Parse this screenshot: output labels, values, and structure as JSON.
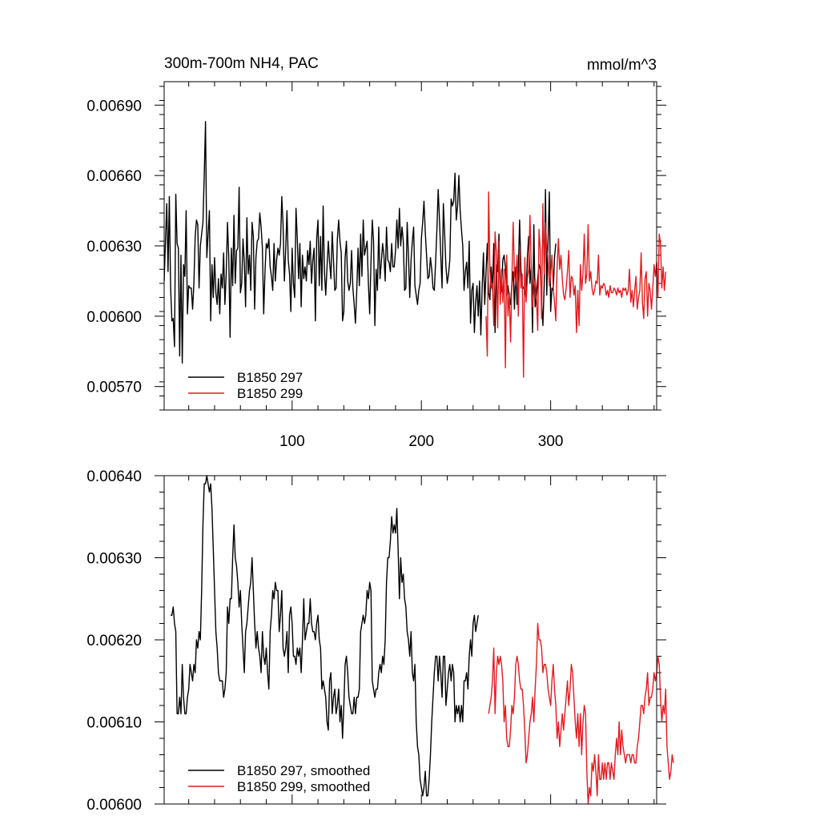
{
  "colors": {
    "series_a": "#000000",
    "series_b": "#e41a1c",
    "axis": "#000000",
    "background": "#ffffff"
  },
  "chart_data": [
    {
      "type": "line",
      "title": "300m-700m NH4, PAC",
      "units": "mmol/m^3",
      "xlim": [
        1,
        382
      ],
      "ylim": [
        0.0056,
        0.007
      ],
      "xticks": [
        100,
        200,
        300
      ],
      "xtick_labels": [
        "100",
        "200",
        "300"
      ],
      "yticks": [
        0.0057,
        0.006,
        0.0063,
        0.0066,
        0.0069
      ],
      "ytick_labels": [
        "0.00570",
        "0.00600",
        "0.00630",
        "0.00660",
        "0.00690"
      ],
      "legend_position": "bottom-left",
      "series": [
        {
          "name": "B1850 297",
          "color": "#000000",
          "x_start": 1,
          "values": [
            0.00615,
            0.00632,
            0.00648,
            0.00619,
            0.00651,
            0.00612,
            0.00598,
            0.00599,
            0.00587,
            0.00652,
            0.00631,
            0.00629,
            0.00583,
            0.00626,
            0.0058,
            0.00622,
            0.00617,
            0.00645,
            0.00601,
            0.00613,
            0.00612,
            0.00612,
            0.00603,
            0.00614,
            0.00634,
            0.00641,
            0.00639,
            0.00612,
            0.0063,
            0.00635,
            0.0064,
            0.0066,
            0.00683,
            0.00625,
            0.00635,
            0.00645,
            0.00598,
            0.00622,
            0.00608,
            0.00625,
            0.0061,
            0.00605,
            0.00616,
            0.00601,
            0.00618,
            0.00612,
            0.00627,
            0.00605,
            0.00618,
            0.0064,
            0.00625,
            0.00591,
            0.00629,
            0.00613,
            0.00643,
            0.00614,
            0.00628,
            0.00629,
            0.00655,
            0.0061,
            0.00614,
            0.00633,
            0.00623,
            0.00604,
            0.00642,
            0.00618,
            0.00626,
            0.00611,
            0.0064,
            0.00634,
            0.00603,
            0.00625,
            0.00632,
            0.00633,
            0.00644,
            0.00638,
            0.00629,
            0.00601,
            0.00619,
            0.00631,
            0.00629,
            0.00633,
            0.00621,
            0.00617,
            0.00611,
            0.00631,
            0.00615,
            0.00624,
            0.00629,
            0.00626,
            0.00631,
            0.00651,
            0.00639,
            0.00615,
            0.00628,
            0.00645,
            0.00624,
            0.00618,
            0.00602,
            0.00629,
            0.00614,
            0.00608,
            0.00646,
            0.00633,
            0.00616,
            0.00631,
            0.00604,
            0.00626,
            0.00616,
            0.00621,
            0.00615,
            0.00628,
            0.00622,
            0.00632,
            0.00614,
            0.00624,
            0.00629,
            0.00598,
            0.00633,
            0.00641,
            0.00613,
            0.00634,
            0.00611,
            0.00647,
            0.00619,
            0.00609,
            0.00621,
            0.00632,
            0.00623,
            0.00616,
            0.00636,
            0.00624,
            0.00611,
            0.00612,
            0.00633,
            0.00641,
            0.00632,
            0.00627,
            0.00598,
            0.00602,
            0.00625,
            0.00632,
            0.00615,
            0.00611,
            0.00614,
            0.00628,
            0.00612,
            0.00605,
            0.00597,
            0.00611,
            0.00629,
            0.00613,
            0.00635,
            0.00617,
            0.00641,
            0.00626,
            0.00629,
            0.00632,
            0.00614,
            0.00601,
            0.00623,
            0.00641,
            0.00632,
            0.00596,
            0.0062,
            0.00611,
            0.00638,
            0.00616,
            0.00623,
            0.00631,
            0.00626,
            0.00615,
            0.00638,
            0.00624,
            0.00623,
            0.00619,
            0.00631,
            0.00621,
            0.00621,
            0.00628,
            0.00641,
            0.00629,
            0.00646,
            0.0063,
            0.00638,
            0.00632,
            0.00611,
            0.00612,
            0.0064,
            0.00626,
            0.00608,
            0.00624,
            0.00632,
            0.00638,
            0.00613,
            0.00609,
            0.00605,
            0.00611,
            0.00614,
            0.00633,
            0.0064,
            0.00649,
            0.00636,
            0.00626,
            0.00616,
            0.00617,
            0.00625,
            0.0062,
            0.00612,
            0.00611,
            0.00623,
            0.00637,
            0.00654,
            0.00641,
            0.00626,
            0.00612,
            0.00648,
            0.00635,
            0.00621,
            0.00614,
            0.00618,
            0.00624,
            0.0065,
            0.00647,
            0.00649,
            0.00661,
            0.00641,
            0.00647,
            0.0066,
            0.00645,
            0.00637,
            0.0063,
            0.00611,
            0.00619,
            0.00623,
            0.00612,
            0.00632,
            0.00597,
            0.00611,
            0.00614,
            0.00593,
            0.00606,
            0.00613,
            0.006,
            0.00615,
            0.00592,
            0.00612,
            0.00627,
            0.00605,
            0.00619,
            0.00631,
            0.0061,
            0.00607,
            0.00621,
            0.00611,
            0.00631,
            0.00593,
            0.00622,
            0.00619,
            0.00635,
            0.00609,
            0.00611,
            0.00624,
            0.00626,
            0.00621,
            0.00609,
            0.00613,
            0.00608,
            0.00605,
            0.00614,
            0.00619,
            0.00603,
            0.00621,
            0.00605,
            0.0062,
            0.00641,
            0.0062,
            0.00613,
            0.00612,
            0.00611,
            0.00608,
            0.00625,
            0.00634,
            0.00614,
            0.00621,
            0.00593,
            0.00639,
            0.00604,
            0.00608,
            0.00616,
            0.00622,
            0.0062,
            0.00606,
            0.00596,
            0.00613,
            0.00654,
            0.00609,
            0.00632,
            0.00653,
            0.00602,
            0.00612,
            0.00611,
            0.00625,
            0.00631
          ]
        },
        {
          "name": "B1850 299",
          "color": "#e41a1c",
          "x_start": 250,
          "values": [
            0.006,
            0.00583,
            0.00653,
            0.0062,
            0.00612,
            0.00614,
            0.00596,
            0.00636,
            0.00627,
            0.00595,
            0.00632,
            0.00605,
            0.0062,
            0.00606,
            0.0062,
            0.00578,
            0.00626,
            0.006,
            0.0061,
            0.00589,
            0.00615,
            0.0064,
            0.00618,
            0.00613,
            0.00626,
            0.006,
            0.00629,
            0.00612,
            0.00618,
            0.00574,
            0.00625,
            0.00606,
            0.00616,
            0.0062,
            0.00643,
            0.00621,
            0.00604,
            0.00611,
            0.00616,
            0.00608,
            0.00594,
            0.00637,
            0.00628,
            0.00599,
            0.00648,
            0.00618,
            0.0064,
            0.00629,
            0.00626,
            0.00613,
            0.00618,
            0.00626,
            0.00612,
            0.00606,
            0.00598,
            0.00621,
            0.00633,
            0.0062,
            0.00626,
            0.00616,
            0.00609,
            0.00607,
            0.00612,
            0.00619,
            0.00628,
            0.00608,
            0.00617,
            0.00616,
            0.00609,
            0.00613,
            0.00593,
            0.00611,
            0.00596,
            0.00622,
            0.00611,
            0.00618,
            0.00635,
            0.00614,
            0.00618,
            0.00639,
            0.00615,
            0.00619,
            0.00612,
            0.00609,
            0.00611,
            0.00615,
            0.00614,
            0.00626,
            0.00609,
            0.00613,
            0.00612,
            0.00614,
            0.00613,
            0.00609,
            0.00611,
            0.00608,
            0.00613,
            0.0061,
            0.0061,
            0.00612,
            0.00611,
            0.00609,
            0.00612,
            0.0061,
            0.00611,
            0.00608,
            0.00612,
            0.00611,
            0.00612,
            0.00609,
            0.00611,
            0.0062,
            0.00606,
            0.00611,
            0.00604,
            0.00611,
            0.00617,
            0.00603,
            0.00608,
            0.00611,
            0.00627,
            0.00606,
            0.00599,
            0.00616,
            0.00619,
            0.006,
            0.00614,
            0.00611,
            0.00603,
            0.00612,
            0.00622,
            0.00617,
            0.00623,
            0.00608,
            0.00635,
            0.00631,
            0.00612,
            0.00621,
            0.00611,
            0.00619
          ]
        }
      ]
    },
    {
      "type": "line",
      "title": "",
      "xlim": [
        1,
        382
      ],
      "ylim": [
        0.006,
        0.0064
      ],
      "yticks": [
        0.006,
        0.0061,
        0.0062,
        0.0063,
        0.0064
      ],
      "ytick_labels": [
        "0.00600",
        "0.00610",
        "0.00620",
        "0.00630",
        "0.00640"
      ],
      "xticks": [
        100,
        200,
        300
      ],
      "legend_position": "bottom-left",
      "series": [
        {
          "name": "B1850 297, smoothed",
          "color": "#000000",
          "x_start": 6,
          "values": [
            0.00623,
            0.00623,
            0.00624,
            0.00622,
            0.00621,
            0.00611,
            0.00611,
            0.00613,
            0.00611,
            0.00617,
            0.00613,
            0.00611,
            0.00611,
            0.00613,
            0.00614,
            0.00617,
            0.00616,
            0.00615,
            0.00617,
            0.00616,
            0.0062,
            0.00619,
            0.00621,
            0.0062,
            0.00626,
            0.00634,
            0.00639,
            0.00639,
            0.0064,
            0.00639,
            0.00638,
            0.00639,
            0.00636,
            0.00631,
            0.00626,
            0.00621,
            0.00619,
            0.00616,
            0.00615,
            0.00615,
            0.00615,
            0.00613,
            0.00614,
            0.00616,
            0.00624,
            0.00622,
            0.00625,
            0.00625,
            0.0063,
            0.00634,
            0.0063,
            0.00629,
            0.00627,
            0.00624,
            0.00626,
            0.00622,
            0.00619,
            0.00616,
            0.00621,
            0.00622,
            0.00624,
            0.00626,
            0.00627,
            0.0063,
            0.00626,
            0.00622,
            0.00619,
            0.00621,
            0.00619,
            0.00618,
            0.00616,
            0.00621,
            0.00618,
            0.00617,
            0.00619,
            0.00616,
            0.00614,
            0.00621,
            0.00623,
            0.00626,
            0.00625,
            0.00627,
            0.00626,
            0.00626,
            0.00621,
            0.00623,
            0.00626,
            0.00619,
            0.00618,
            0.00619,
            0.00621,
            0.00616,
            0.00623,
            0.00624,
            0.00622,
            0.00618,
            0.00618,
            0.00617,
            0.00619,
            0.00618,
            0.00619,
            0.00616,
            0.0062,
            0.00625,
            0.0062,
            0.00621,
            0.00622,
            0.00622,
            0.00625,
            0.00622,
            0.00621,
            0.00621,
            0.0062,
            0.00622,
            0.00623,
            0.0062,
            0.00619,
            0.00614,
            0.00615,
            0.00614,
            0.00613,
            0.0061,
            0.00609,
            0.00615,
            0.00616,
            0.00611,
            0.00613,
            0.00614,
            0.00611,
            0.00612,
            0.00614,
            0.0061,
            0.00612,
            0.00608,
            0.00612,
            0.00617,
            0.00618,
            0.00616,
            0.00613,
            0.00612,
            0.00611,
            0.00611,
            0.00613,
            0.00611,
            0.00613,
            0.00613,
            0.00614,
            0.00621,
            0.00622,
            0.00623,
            0.00622,
            0.00623,
            0.00626,
            0.00625,
            0.00627,
            0.00626,
            0.00615,
            0.00614,
            0.00613,
            0.00614,
            0.00614,
            0.00616,
            0.00617,
            0.00616,
            0.00618,
            0.00617,
            0.0062,
            0.00627,
            0.0063,
            0.0063,
            0.00632,
            0.00635,
            0.00633,
            0.00634,
            0.00633,
            0.00636,
            0.00631,
            0.00625,
            0.0063,
            0.00627,
            0.00628,
            0.00625,
            0.00624,
            0.00621,
            0.0062,
            0.00618,
            0.00621,
            0.00616,
            0.00615,
            0.00617,
            0.0061,
            0.00607,
            0.00606,
            0.00603,
            0.00602,
            0.00601,
            0.00602,
            0.00604,
            0.00601,
            0.00601,
            0.00603,
            0.00606,
            0.0061,
            0.00613,
            0.00616,
            0.00618,
            0.00618,
            0.00615,
            0.00618,
            0.00616,
            0.00613,
            0.00618,
            0.00618,
            0.00612,
            0.00614,
            0.00616,
            0.00617,
            0.00615,
            0.00617,
            0.00616,
            0.0061,
            0.00612,
            0.00611,
            0.00612,
            0.0061,
            0.00612,
            0.0061,
            0.00615,
            0.00615,
            0.00616,
            0.00614,
            0.00618,
            0.0062,
            0.00618,
            0.00622,
            0.00623,
            0.00621,
            0.00622,
            0.00623
          ]
        },
        {
          "name": "B1850 299, smoothed",
          "color": "#e41a1c",
          "x_start": 252,
          "values": [
            0.00611,
            0.00612,
            0.00613,
            0.00615,
            0.00619,
            0.00611,
            0.00616,
            0.00618,
            0.00617,
            0.00618,
            0.00617,
            0.00615,
            0.0061,
            0.00612,
            0.00608,
            0.00607,
            0.00607,
            0.00609,
            0.00612,
            0.00611,
            0.00613,
            0.00617,
            0.00618,
            0.00617,
            0.00615,
            0.00614,
            0.00614,
            0.00612,
            0.00609,
            0.00605,
            0.00606,
            0.00608,
            0.0061,
            0.00611,
            0.00613,
            0.0061,
            0.00614,
            0.00617,
            0.00622,
            0.0062,
            0.0062,
            0.00619,
            0.00616,
            0.00617,
            0.00617,
            0.00616,
            0.00614,
            0.00613,
            0.00612,
            0.00615,
            0.00617,
            0.00614,
            0.00612,
            0.00608,
            0.0061,
            0.00607,
            0.00609,
            0.00611,
            0.00609,
            0.00611,
            0.00613,
            0.00615,
            0.00612,
            0.00614,
            0.00617,
            0.00616,
            0.00613,
            0.0061,
            0.00608,
            0.00611,
            0.00607,
            0.00611,
            0.00606,
            0.0061,
            0.00612,
            0.00611,
            0.00604,
            0.006,
            0.00602,
            0.00601,
            0.00605,
            0.00604,
            0.00606,
            0.00604,
            0.00601,
            0.00606,
            0.00603,
            0.00603,
            0.00605,
            0.00603,
            0.00605,
            0.00603,
            0.00605,
            0.00605,
            0.00603,
            0.00605,
            0.00604,
            0.00603,
            0.00606,
            0.00608,
            0.00606,
            0.0061,
            0.00606,
            0.00609,
            0.00607,
            0.00606,
            0.00605,
            0.00606,
            0.00606,
            0.00606,
            0.00605,
            0.00606,
            0.00606,
            0.00605,
            0.00605,
            0.00607,
            0.00608,
            0.0061,
            0.00612,
            0.00612,
            0.00611,
            0.00613,
            0.00614,
            0.00616,
            0.00612,
            0.00613,
            0.00613,
            0.00614,
            0.00616,
            0.00615,
            0.00616,
            0.00618,
            0.00617,
            0.00613,
            0.0061,
            0.00612,
            0.00611,
            0.00614,
            0.00607,
            0.00605,
            0.00603,
            0.00604,
            0.00606,
            0.00605
          ]
        }
      ]
    }
  ]
}
